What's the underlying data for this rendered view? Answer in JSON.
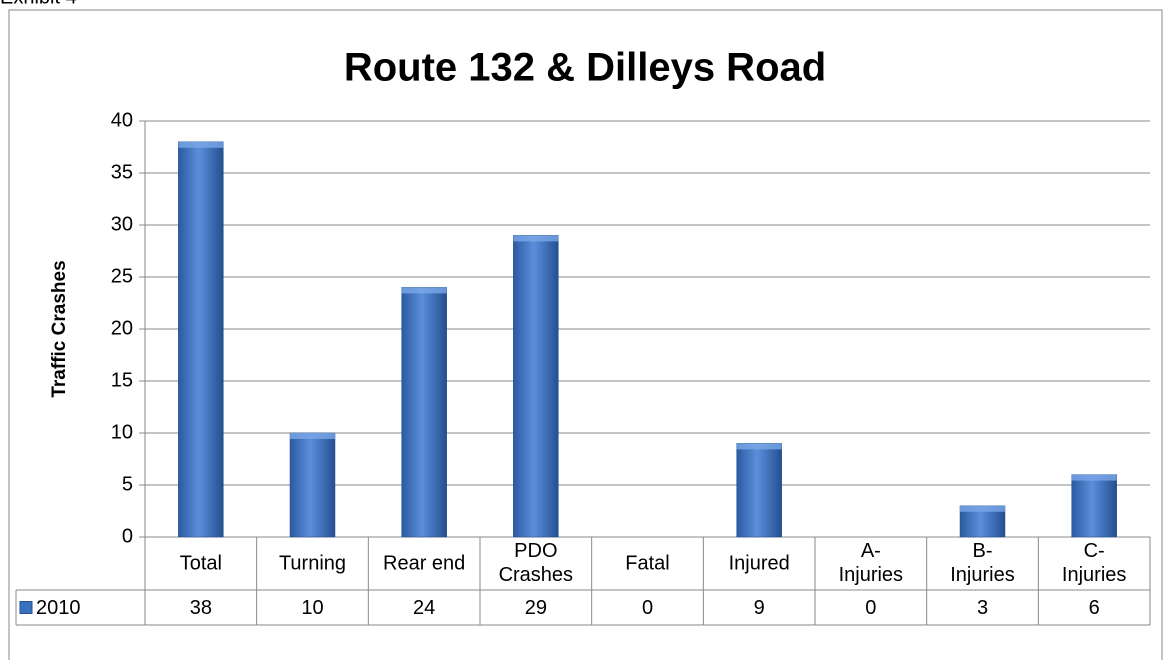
{
  "header": "Exhibit 4",
  "chart_data": {
    "type": "bar",
    "title": "Route 132 & Dilleys Road",
    "y_label": "Traffic Crashes",
    "categories": [
      "Total",
      "Turning",
      "Rear end",
      "PDO Crashes",
      "Fatal",
      "Injured",
      "A- Injuries",
      "B- Injuries",
      "C- Injuries"
    ],
    "series": [
      {
        "name": "2010",
        "color": "#3a70c0",
        "values": [
          38,
          10,
          24,
          29,
          0,
          9,
          0,
          3,
          6
        ]
      }
    ],
    "ylim": [
      0,
      40
    ],
    "yticks": [
      0,
      5,
      10,
      15,
      20,
      25,
      30,
      35,
      40
    ],
    "grid": true,
    "data_table": true
  }
}
